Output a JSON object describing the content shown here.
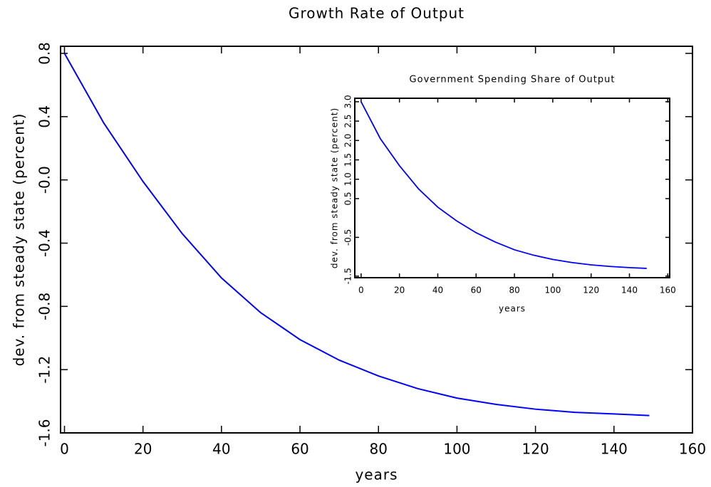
{
  "chart_data": [
    {
      "type": "line",
      "title": "Growth Rate of Output",
      "xlabel": "years",
      "ylabel": "dev. from steady state (percent)",
      "x": [
        0,
        10,
        20,
        30,
        40,
        50,
        60,
        70,
        80,
        90,
        100,
        110,
        120,
        130,
        140,
        149
      ],
      "series": [
        {
          "color": "#0000ff",
          "values": [
            0.8,
            0.36,
            -0.01,
            -0.34,
            -0.62,
            -0.84,
            -1.01,
            -1.14,
            -1.24,
            -1.32,
            -1.38,
            -1.42,
            -1.45,
            -1.47,
            -1.48,
            -1.49
          ]
        }
      ],
      "xlim": [
        -1,
        160
      ],
      "xticks": [
        0,
        20,
        40,
        60,
        80,
        100,
        120,
        140,
        160
      ],
      "ylim": [
        -1.6,
        0.845
      ],
      "yticks": [
        -1.6,
        -1.2,
        -0.8,
        -0.4,
        {
          "value": 0,
          "label": "-0.0"
        },
        0.4,
        0.8
      ],
      "grid": false
    },
    {
      "type": "line",
      "title": "Government Spending Share of Output",
      "xlabel": "years",
      "ylabel": "dev. from steady state (percent)",
      "x": [
        0,
        10,
        20,
        30,
        40,
        50,
        60,
        70,
        80,
        90,
        100,
        110,
        120,
        130,
        140,
        149
      ],
      "series": [
        {
          "color": "#0000ff",
          "values": [
            3.0,
            2.05,
            1.35,
            0.75,
            0.28,
            -0.08,
            -0.38,
            -0.62,
            -0.82,
            -0.96,
            -1.07,
            -1.15,
            -1.21,
            -1.25,
            -1.28,
            -1.3
          ]
        }
      ],
      "xlim": [
        -3.3,
        161
      ],
      "xticks": [
        0,
        20,
        40,
        60,
        80,
        100,
        120,
        140,
        160
      ],
      "ylim": [
        -1.54,
        3.09
      ],
      "yticks": [
        -1.5,
        -0.5,
        0.5,
        {
          "value": 1,
          "label": "1.0"
        },
        1.5,
        {
          "value": 2,
          "label": "2.0"
        },
        2.5,
        {
          "value": 3,
          "label": "3.0"
        }
      ],
      "grid": false
    }
  ]
}
